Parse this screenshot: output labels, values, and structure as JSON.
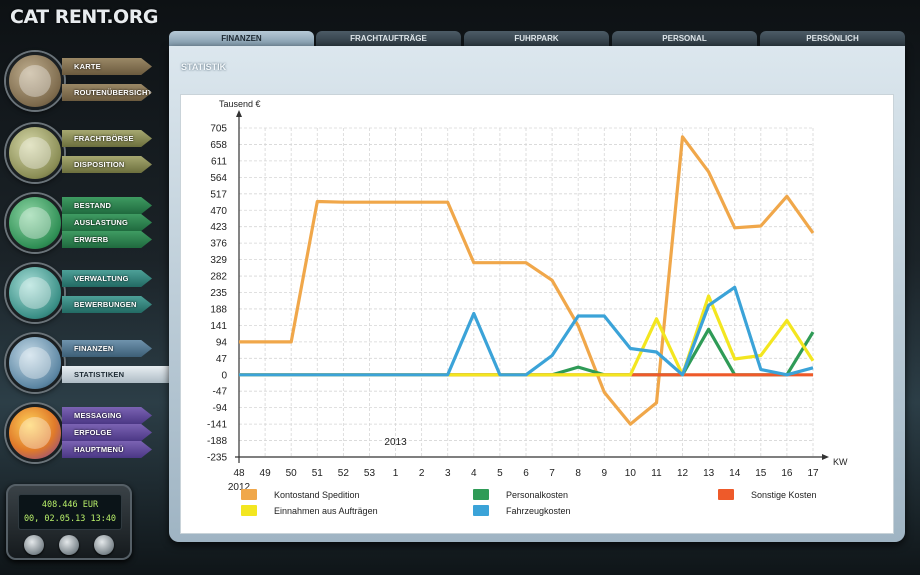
{
  "logo": {
    "text": "CAT RENT.ORG"
  },
  "tabs": [
    {
      "label": "FINANZEN",
      "active": true
    },
    {
      "label": "FRACHTAUFTRÄGE",
      "active": false
    },
    {
      "label": "FUHRPARK",
      "active": false
    },
    {
      "label": "PERSONAL",
      "active": false
    },
    {
      "label": "PERSÖNLICH",
      "active": false
    }
  ],
  "sidebar": {
    "groups": [
      {
        "icon": "map-icon",
        "color": "brown",
        "items": [
          "KARTE",
          "ROUTENÜBERSICHT"
        ]
      },
      {
        "icon": "exchange-icon",
        "color": "olive",
        "items": [
          "FRACHTBÖRSE",
          "DISPOSITION"
        ]
      },
      {
        "icon": "truck-icon",
        "color": "green",
        "items": [
          "BESTAND",
          "AUSLASTUNG",
          "ERWERB"
        ]
      },
      {
        "icon": "people-icon",
        "color": "teal",
        "items": [
          "VERWALTUNG",
          "BEWERBUNGEN"
        ]
      },
      {
        "icon": "euro-icon",
        "color": "blue",
        "items": [
          "FINANZEN",
          "STATISTIKEN"
        ]
      },
      {
        "icon": "avatar-icon",
        "color": "purple",
        "items": [
          "MESSAGING",
          "ERFOLGE",
          "HAUPTMENÜ"
        ]
      }
    ],
    "active_item": "STATISTIKEN"
  },
  "display": {
    "balance": "408.446 EUR",
    "datetime": "00, 02.05.13 13:40"
  },
  "panel": {
    "title": "STATISTIK"
  },
  "chart_data": {
    "type": "line",
    "ylabel": "Tausend €",
    "xlabel": "KW",
    "year_labels": [
      {
        "text": "2012",
        "at_index": 0
      },
      {
        "text": "2013",
        "at_index": 6
      }
    ],
    "categories": [
      "48",
      "49",
      "50",
      "51",
      "52",
      "53",
      "1",
      "2",
      "3",
      "4",
      "5",
      "6",
      "7",
      "8",
      "9",
      "10",
      "11",
      "12",
      "13",
      "14",
      "15",
      "16",
      "17"
    ],
    "ylim": [
      -235,
      705
    ],
    "yticks": [
      705,
      658,
      611,
      564,
      517,
      470,
      423,
      376,
      329,
      282,
      235,
      188,
      141,
      94,
      47,
      0,
      -47,
      -94,
      -141,
      -188,
      -235
    ],
    "grid": true,
    "series": [
      {
        "name": "Kontostand Spedition",
        "color": "#f0a74a",
        "values": [
          94,
          94,
          94,
          495,
          493,
          493,
          493,
          493,
          493,
          320,
          320,
          320,
          270,
          140,
          -50,
          -141,
          -80,
          680,
          580,
          420,
          425,
          510,
          405
        ]
      },
      {
        "name": "Personalkosten",
        "color": "#2f9b57",
        "values": [
          0,
          0,
          0,
          0,
          0,
          0,
          0,
          0,
          0,
          0,
          0,
          0,
          0,
          22,
          0,
          0,
          0,
          0,
          130,
          0,
          0,
          0,
          122
        ]
      },
      {
        "name": "Sonstige Kosten",
        "color": "#ee5a2a",
        "values": [
          0,
          0,
          0,
          0,
          0,
          0,
          0,
          0,
          0,
          0,
          0,
          0,
          0,
          0,
          0,
          0,
          0,
          0,
          0,
          0,
          0,
          0,
          0
        ]
      },
      {
        "name": "Einnahmen aus Aufträgen",
        "color": "#f3e620",
        "values": [
          0,
          0,
          0,
          0,
          0,
          0,
          0,
          0,
          0,
          0,
          0,
          0,
          0,
          0,
          0,
          0,
          160,
          0,
          225,
          45,
          55,
          155,
          40
        ]
      },
      {
        "name": "Fahrzeugkosten",
        "color": "#3ba3d8",
        "values": [
          0,
          0,
          0,
          0,
          0,
          0,
          0,
          0,
          0,
          175,
          0,
          0,
          55,
          168,
          168,
          75,
          65,
          0,
          198,
          250,
          15,
          0,
          20
        ]
      }
    ],
    "legend_order": [
      "Kontostand Spedition",
      "Personalkosten",
      "Sonstige Kosten",
      "Einnahmen aus Aufträgen",
      "Fahrzeugkosten"
    ],
    "legend_position": "bottom"
  }
}
